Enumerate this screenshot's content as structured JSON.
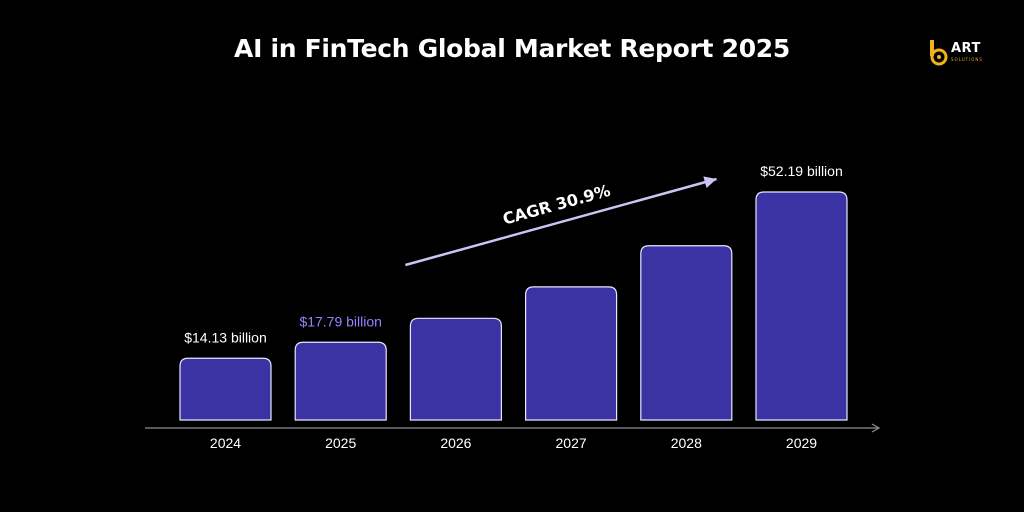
{
  "header": {
    "title": "AI in FinTech Global Market Report 2025"
  },
  "logo": {
    "name": "ART",
    "subtitle": "SOLUTIONS",
    "accent_color": "#f2b21a"
  },
  "colors": {
    "background": "#000000",
    "bar_fill": "#3b32a3",
    "bar_stroke": "#e8e6ff",
    "axis": "#8c8c8c",
    "arrow": "#c9c6f6",
    "highlight_label": "#8f84ff",
    "text": "#ffffff"
  },
  "chart_data": {
    "type": "bar",
    "title": "AI in FinTech Global Market Report 2025",
    "categories": [
      "2024",
      "2025",
      "2026",
      "2027",
      "2028",
      "2029"
    ],
    "values": [
      14.13,
      17.79,
      23.28,
      30.48,
      39.89,
      52.19
    ],
    "unit": "billion USD",
    "data_labels": [
      "$14.13 billion",
      "$17.79 billion",
      "",
      "",
      "",
      "$52.19 billion"
    ],
    "highlighted_category": "2025",
    "annotation": {
      "text": "CAGR 30.9%",
      "from_category": "2026",
      "to_category": "2029"
    },
    "xlabel": "",
    "ylabel": "",
    "ylim": [
      0,
      52.19
    ],
    "grid": false,
    "legend": "none"
  }
}
